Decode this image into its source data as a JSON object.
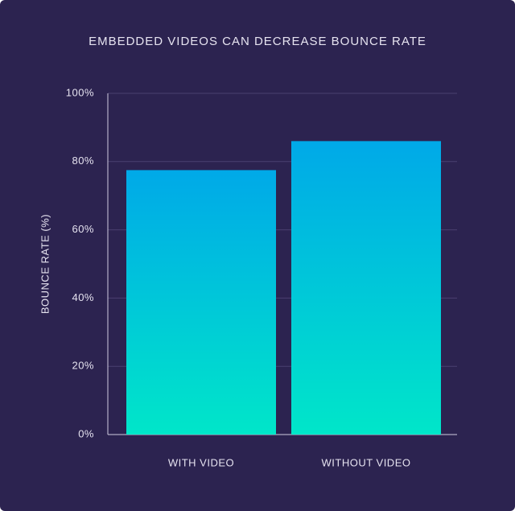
{
  "chart_data": {
    "type": "bar",
    "title": "EMBEDDED VIDEOS CAN DECREASE BOUNCE RATE",
    "y_label": "BOUNCE RATE (%)",
    "categories": [
      "WITH VIDEO",
      "WITHOUT VIDEO"
    ],
    "values": [
      77.5,
      86
    ],
    "color": "#00b4e2",
    "gradient": [
      "#00a9e8",
      "#00e6c9"
    ],
    "ylim": [
      0,
      100
    ],
    "yticks": [
      {
        "value": 0,
        "label": "0%"
      },
      {
        "value": 20,
        "label": "20%"
      },
      {
        "value": 40,
        "label": "40%"
      },
      {
        "value": 60,
        "label": "60%"
      },
      {
        "value": 80,
        "label": "80%"
      },
      {
        "value": 100,
        "label": "100%"
      }
    ],
    "grid": true
  }
}
